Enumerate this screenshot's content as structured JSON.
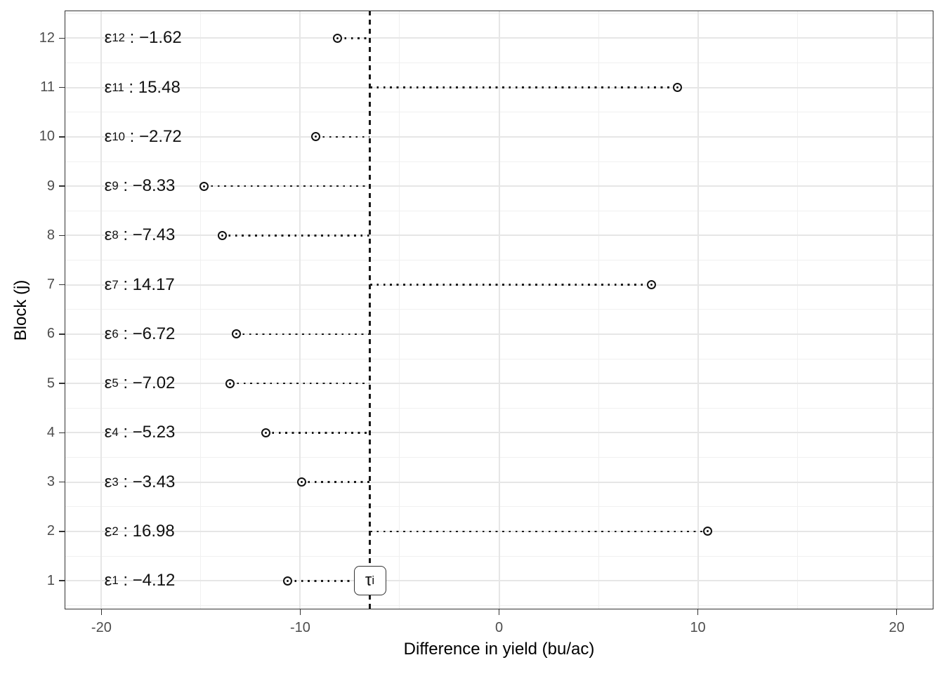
{
  "chart_data": {
    "type": "scatter",
    "title": "",
    "xlabel": "Difference in yield (bu/ac)",
    "ylabel": "Block (j)",
    "xlim": [
      -21.85,
      21.85
    ],
    "ylim": [
      0.42,
      12.56
    ],
    "grid": "major and minor, light gray, white panel (theme_bw style)",
    "legend_position": "none",
    "x_ticks": [
      {
        "v": -20,
        "label": "-20"
      },
      {
        "v": -10,
        "label": "-10"
      },
      {
        "v": 0,
        "label": "0"
      },
      {
        "v": 10,
        "label": "10"
      },
      {
        "v": 20,
        "label": "20"
      }
    ],
    "x_minor_ticks": [
      -15,
      -5,
      5,
      15
    ],
    "y_ticks": [
      {
        "v": 1,
        "label": "1"
      },
      {
        "v": 2,
        "label": "2"
      },
      {
        "v": 3,
        "label": "3"
      },
      {
        "v": 4,
        "label": "4"
      },
      {
        "v": 5,
        "label": "5"
      },
      {
        "v": 6,
        "label": "6"
      },
      {
        "v": 7,
        "label": "7"
      },
      {
        "v": 8,
        "label": "8"
      },
      {
        "v": 9,
        "label": "9"
      },
      {
        "v": 10,
        "label": "10"
      },
      {
        "v": 11,
        "label": "11"
      },
      {
        "v": 12,
        "label": "12"
      }
    ],
    "y_minor_ticks": [
      0.5,
      1.5,
      2.5,
      3.5,
      4.5,
      5.5,
      6.5,
      7.5,
      8.5,
      9.5,
      10.5,
      11.5,
      12.5
    ],
    "reference_line": {
      "x": -6.5,
      "style": "dashed-vertical",
      "label_symbol": "τ",
      "label_subscript": "i",
      "label_at_block": 1
    },
    "series": [
      {
        "name": "block-residuals",
        "marker": "open-circle-with-center-dot",
        "connector": "dotted-horizontal-to-reference-line",
        "label_symbol": "ε",
        "label_separator": " : ",
        "label_anchor_x": -19.85,
        "points": [
          {
            "block": 12,
            "epsilon": -1.62,
            "label_value": "−1.62"
          },
          {
            "block": 11,
            "epsilon": 15.48,
            "label_value": "15.48"
          },
          {
            "block": 10,
            "epsilon": -2.72,
            "label_value": "−2.72"
          },
          {
            "block": 9,
            "epsilon": -8.33,
            "label_value": "−8.33"
          },
          {
            "block": 8,
            "epsilon": -7.43,
            "label_value": "−7.43"
          },
          {
            "block": 7,
            "epsilon": 14.17,
            "label_value": "14.17"
          },
          {
            "block": 6,
            "epsilon": -6.72,
            "label_value": "−6.72"
          },
          {
            "block": 5,
            "epsilon": -7.02,
            "label_value": "−7.02"
          },
          {
            "block": 4,
            "epsilon": -5.23,
            "label_value": "−5.23"
          },
          {
            "block": 3,
            "epsilon": -3.43,
            "label_value": "−3.43"
          },
          {
            "block": 2,
            "epsilon": 16.98,
            "label_value": "16.98"
          },
          {
            "block": 1,
            "epsilon": -4.12,
            "label_value": "−4.12"
          }
        ]
      }
    ]
  },
  "colors": {
    "background": "#ffffff",
    "panel_border": "#333333",
    "grid_major": "#e6e6e6",
    "grid_minor": "#f0f0f0",
    "tick_mark": "#333333",
    "tick_label": "#4d4d4d",
    "axis_title": "#000000",
    "data_ink": "#1a1a1a"
  }
}
